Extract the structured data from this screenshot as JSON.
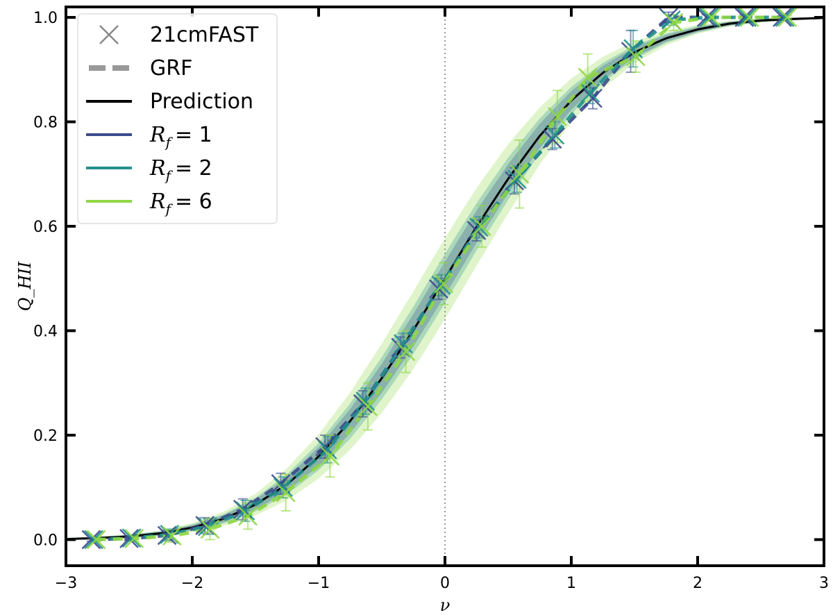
{
  "chart_data": {
    "type": "line",
    "title": "",
    "xlabel": "ν",
    "ylabel": "Q_HII",
    "xlim": [
      -3,
      3
    ],
    "ylim": [
      -0.05,
      1.02
    ],
    "xticks": [
      -3,
      -2,
      -1,
      0,
      1,
      2,
      3
    ],
    "xtick_labels": [
      "−3",
      "−2",
      "−1",
      "0",
      "1",
      "2",
      "3"
    ],
    "yticks": [
      0.0,
      0.2,
      0.4,
      0.6,
      0.8,
      1.0
    ],
    "ytick_labels": [
      "0.0",
      "0.2",
      "0.4",
      "0.6",
      "0.8",
      "1.0"
    ],
    "grid": false,
    "legend_position": "upper-left",
    "reference_line": {
      "x": 0,
      "style": "dotted",
      "color": "#999999"
    },
    "legend": [
      {
        "label": "21cmFAST",
        "kind": "marker",
        "color": "#888888"
      },
      {
        "label": "GRF",
        "kind": "dashed",
        "color": "#999999"
      },
      {
        "label": "Prediction",
        "kind": "line",
        "color": "#000000"
      },
      {
        "label": "R",
        "sub": "f",
        "value": "= 1",
        "kind": "line",
        "color": "#3b4a8c"
      },
      {
        "label": "R",
        "sub": "f",
        "value": "= 2",
        "kind": "line",
        "color": "#21918c"
      },
      {
        "label": "R",
        "sub": "f",
        "value": "= 6",
        "kind": "line",
        "color": "#8fd744"
      }
    ],
    "prediction": {
      "name": "Prediction",
      "x": [
        -3.0,
        -2.75,
        -2.5,
        -2.25,
        -2.0,
        -1.75,
        -1.5,
        -1.25,
        -1.0,
        -0.75,
        -0.5,
        -0.25,
        0.0,
        0.25,
        0.5,
        0.75,
        1.0,
        1.25,
        1.5,
        1.75,
        2.0,
        2.25,
        2.5,
        2.75,
        3.0
      ],
      "y": [
        0.001,
        0.003,
        0.006,
        0.012,
        0.023,
        0.04,
        0.067,
        0.106,
        0.159,
        0.227,
        0.309,
        0.401,
        0.5,
        0.599,
        0.691,
        0.773,
        0.841,
        0.894,
        0.933,
        0.96,
        0.977,
        0.988,
        0.994,
        0.997,
        0.999
      ],
      "color": "#000000"
    },
    "series": [
      {
        "name": "R_f = 1",
        "color": "#3b4a8c",
        "band_halfwidth": 0.03,
        "x": [
          -2.8,
          -2.5,
          -2.2,
          -1.9,
          -1.6,
          -1.3,
          -0.95,
          -0.65,
          -0.35,
          -0.05,
          0.25,
          0.55,
          0.85,
          1.17,
          1.47,
          1.77,
          2.07,
          2.37,
          2.67
        ],
        "y": [
          0.0,
          0.002,
          0.008,
          0.027,
          0.058,
          0.107,
          0.178,
          0.26,
          0.368,
          0.48,
          0.592,
          0.687,
          0.767,
          0.845,
          0.935,
          1.0,
          1.0,
          1.0,
          1.0
        ],
        "err": [
          0.003,
          0.004,
          0.01,
          0.015,
          0.02,
          0.02,
          0.022,
          0.025,
          0.02,
          0.02,
          0.02,
          0.025,
          0.02,
          0.02,
          0.04,
          0.01,
          0.005,
          0.005,
          0.003
        ]
      },
      {
        "name": "R_f = 2",
        "color": "#21918c",
        "band_halfwidth": 0.045,
        "x": [
          -2.78,
          -2.48,
          -2.18,
          -1.88,
          -1.58,
          -1.28,
          -0.93,
          -0.63,
          -0.33,
          -0.03,
          0.27,
          0.57,
          0.87,
          1.15,
          1.49,
          1.79,
          2.09,
          2.39,
          2.69
        ],
        "y": [
          0.0,
          0.003,
          0.01,
          0.025,
          0.055,
          0.1,
          0.172,
          0.265,
          0.375,
          0.487,
          0.598,
          0.69,
          0.775,
          0.855,
          0.94,
          0.995,
          1.0,
          1.0,
          1.0
        ],
        "err": [
          0.003,
          0.004,
          0.01,
          0.015,
          0.02,
          0.02,
          0.025,
          0.025,
          0.02,
          0.02,
          0.02,
          0.025,
          0.025,
          0.02,
          0.035,
          0.01,
          0.005,
          0.005,
          0.003
        ]
      },
      {
        "name": "R_f = 6",
        "color": "#8fd744",
        "band_halfwidth": 0.075,
        "x": [
          -2.76,
          -2.46,
          -2.16,
          -1.86,
          -1.56,
          -1.26,
          -0.91,
          -0.61,
          -0.31,
          -0.01,
          0.29,
          0.59,
          0.89,
          1.13,
          1.51,
          1.81,
          2.11,
          2.41,
          2.71
        ],
        "y": [
          0.0,
          0.002,
          0.007,
          0.02,
          0.045,
          0.09,
          0.16,
          0.255,
          0.36,
          0.49,
          0.6,
          0.7,
          0.81,
          0.885,
          0.925,
          0.99,
          1.0,
          1.0,
          1.0
        ],
        "err": [
          0.004,
          0.005,
          0.012,
          0.02,
          0.025,
          0.035,
          0.04,
          0.045,
          0.04,
          0.04,
          0.04,
          0.065,
          0.05,
          0.045,
          0.03,
          0.015,
          0.005,
          0.005,
          0.003
        ]
      }
    ]
  }
}
